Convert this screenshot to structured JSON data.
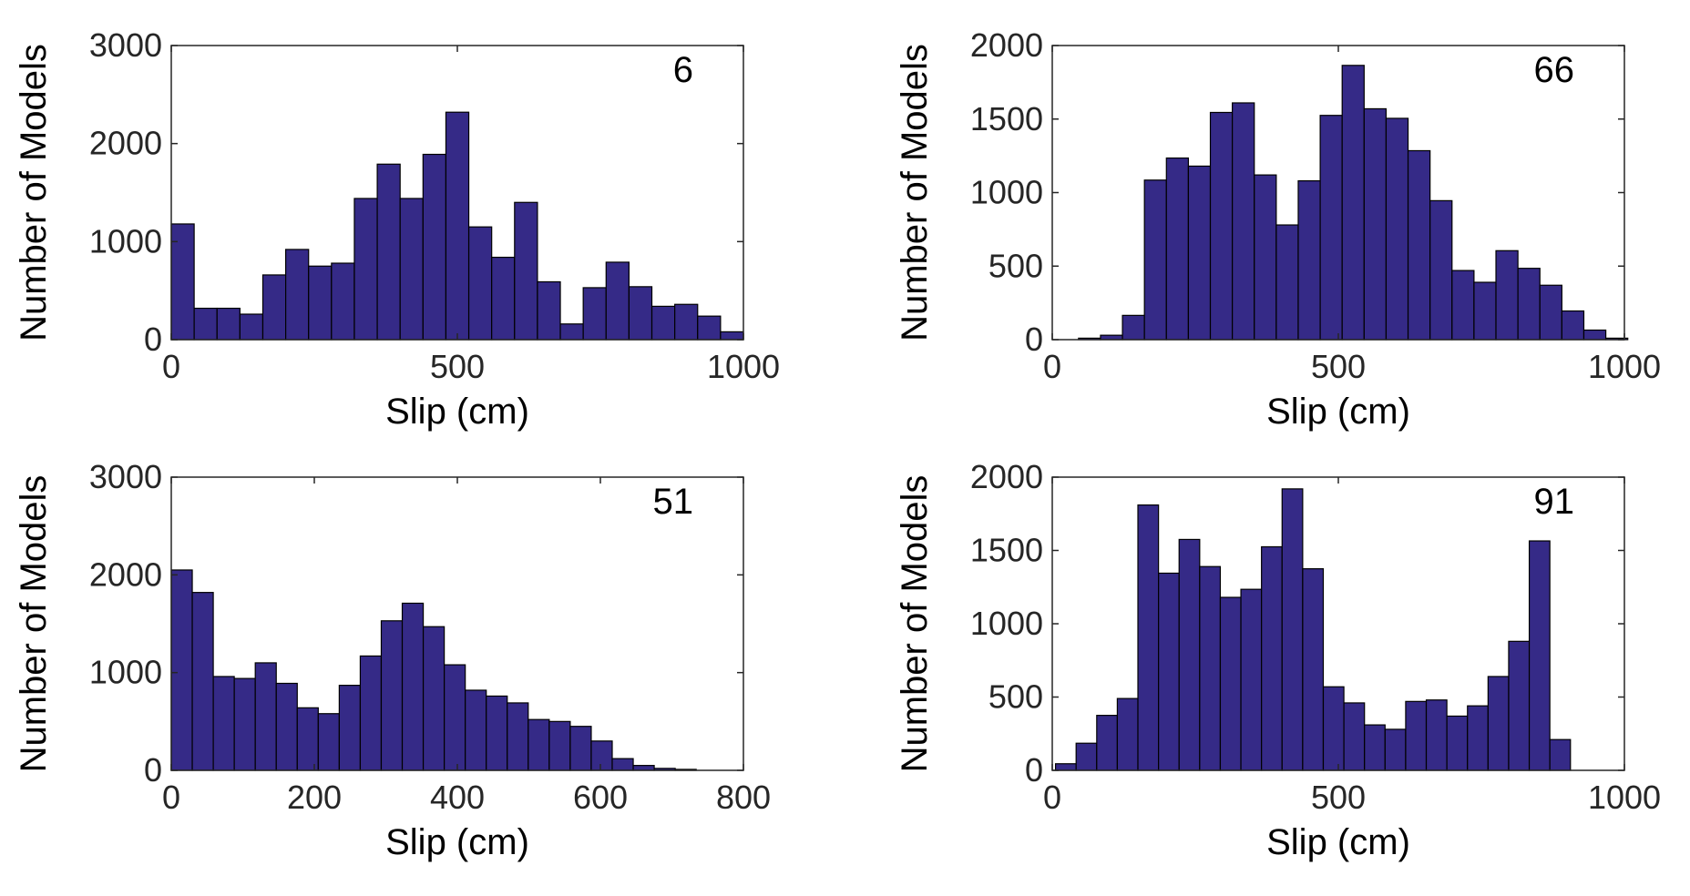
{
  "chart_data": [
    {
      "type": "bar",
      "panel_label": "6",
      "xlabel": "Slip (cm)",
      "ylabel": "Number of Models",
      "xlim": [
        0,
        1000
      ],
      "ylim": [
        0,
        3000
      ],
      "xticks": [
        0,
        500,
        1000
      ],
      "yticks": [
        0,
        1000,
        2000,
        3000
      ],
      "grid": false,
      "bar_color": "#352A87",
      "bins": {
        "start": 0,
        "width": 40,
        "values": [
          1180,
          320,
          320,
          260,
          660,
          920,
          750,
          780,
          1440,
          1790,
          1440,
          1890,
          2320,
          1150,
          840,
          1400,
          590,
          160,
          530,
          790,
          540,
          340,
          360,
          240,
          80
        ]
      }
    },
    {
      "type": "bar",
      "panel_label": "66",
      "xlabel": "Slip (cm)",
      "ylabel": "Number of Models",
      "xlim": [
        0,
        1000
      ],
      "ylim": [
        0,
        2000
      ],
      "xticks": [
        0,
        500,
        1000
      ],
      "yticks": [
        0,
        500,
        1000,
        1500,
        2000
      ],
      "grid": false,
      "bar_color": "#352A87",
      "bins": {
        "start": 45.9,
        "width": 38.4,
        "values": [
          10,
          30,
          165,
          1085,
          1235,
          1180,
          1545,
          1610,
          1120,
          780,
          1080,
          1525,
          1865,
          1570,
          1505,
          1285,
          945,
          470,
          390,
          605,
          485,
          370,
          195,
          65,
          10
        ]
      }
    },
    {
      "type": "bar",
      "panel_label": "51",
      "xlabel": "Slip (cm)",
      "ylabel": "Number of Models",
      "xlim": [
        0,
        800
      ],
      "ylim": [
        0,
        3000
      ],
      "xticks": [
        0,
        200,
        400,
        600,
        800
      ],
      "yticks": [
        0,
        1000,
        2000,
        3000
      ],
      "grid": false,
      "bar_color": "#352A87",
      "bins": {
        "start": 0,
        "width": 29.36,
        "values": [
          2050,
          1820,
          960,
          940,
          1100,
          890,
          640,
          580,
          870,
          1170,
          1530,
          1710,
          1470,
          1080,
          820,
          760,
          690,
          520,
          500,
          450,
          300,
          120,
          50,
          20,
          10
        ]
      }
    },
    {
      "type": "bar",
      "panel_label": "91",
      "xlabel": "Slip (cm)",
      "ylabel": "Number of Models",
      "xlim": [
        0,
        1000
      ],
      "ylim": [
        0,
        2000
      ],
      "xticks": [
        0,
        500,
        1000
      ],
      "yticks": [
        0,
        500,
        1000,
        1500,
        2000
      ],
      "grid": false,
      "bar_color": "#352A87",
      "bins": {
        "start": 5.7,
        "width": 36.0,
        "values": [
          45,
          185,
          375,
          490,
          1810,
          1345,
          1575,
          1390,
          1180,
          1235,
          1525,
          1920,
          1375,
          570,
          460,
          310,
          280,
          470,
          480,
          370,
          440,
          640,
          880,
          1565,
          210
        ]
      }
    }
  ]
}
